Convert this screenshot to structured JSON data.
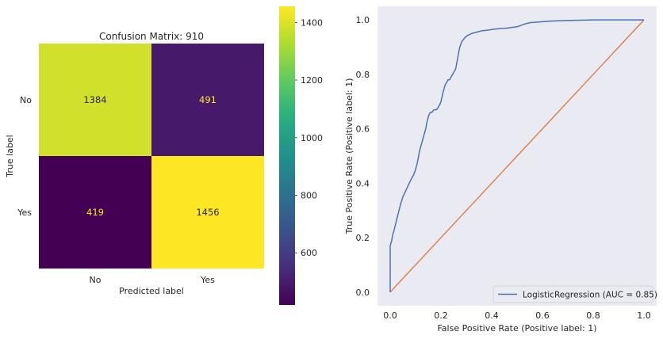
{
  "chart_data": [
    {
      "type": "heatmap",
      "title": "Confusion Matrix: 910",
      "xlabel": "Predicted label",
      "ylabel": "True label",
      "x_categories": [
        "No",
        "Yes"
      ],
      "y_categories": [
        "No",
        "Yes"
      ],
      "values": [
        [
          1384,
          491
        ],
        [
          419,
          1456
        ]
      ],
      "colorbar": {
        "range": [
          419,
          1456
        ],
        "ticks": [
          600,
          800,
          1000,
          1200,
          1400
        ],
        "colormap": "viridis"
      },
      "grid": false
    },
    {
      "type": "line",
      "xlabel": "False Positive Rate (Positive label: 1)",
      "ylabel": "True Positive Rate (Positive label: 1)",
      "xlim": [
        -0.05,
        1.05
      ],
      "ylim": [
        -0.05,
        1.05
      ],
      "xticks": [
        "0.0",
        "0.2",
        "0.4",
        "0.6",
        "0.8",
        "1.0"
      ],
      "yticks": [
        "0.0",
        "0.2",
        "0.4",
        "0.6",
        "0.8",
        "1.0"
      ],
      "background": "#eaeaf2",
      "grid": false,
      "legend_position": "bottom-right",
      "series": [
        {
          "name": "LogisticRegression (AUC = 0.85)",
          "color": "#4c72b0",
          "x": [
            0,
            0,
            0.003,
            0.006,
            0.01,
            0.016,
            0.024,
            0.032,
            0.04,
            0.05,
            0.06,
            0.07,
            0.08,
            0.092,
            0.1,
            0.108,
            0.116,
            0.122,
            0.128,
            0.134,
            0.14,
            0.146,
            0.152,
            0.158,
            0.164,
            0.172,
            0.182,
            0.19,
            0.196,
            0.2,
            0.205,
            0.21,
            0.216,
            0.222,
            0.228,
            0.234,
            0.24,
            0.246,
            0.252,
            0.258,
            0.262,
            0.266,
            0.27,
            0.274,
            0.278,
            0.282,
            0.286,
            0.29,
            0.295,
            0.3,
            0.31,
            0.32,
            0.34,
            0.36,
            0.38,
            0.4,
            0.43,
            0.46,
            0.5,
            0.53,
            0.55,
            0.58,
            0.62,
            0.66,
            0.7,
            0.75,
            0.8,
            0.85,
            0.9,
            0.95,
            1.0
          ],
          "y": [
            0,
            0.17,
            0.18,
            0.19,
            0.21,
            0.23,
            0.26,
            0.29,
            0.32,
            0.35,
            0.37,
            0.39,
            0.41,
            0.43,
            0.45,
            0.48,
            0.52,
            0.54,
            0.56,
            0.58,
            0.6,
            0.63,
            0.65,
            0.66,
            0.66,
            0.67,
            0.67,
            0.68,
            0.69,
            0.7,
            0.72,
            0.74,
            0.76,
            0.77,
            0.78,
            0.78,
            0.79,
            0.8,
            0.81,
            0.82,
            0.84,
            0.86,
            0.88,
            0.9,
            0.91,
            0.92,
            0.925,
            0.93,
            0.935,
            0.94,
            0.945,
            0.95,
            0.955,
            0.96,
            0.962,
            0.965,
            0.968,
            0.97,
            0.975,
            0.985,
            0.99,
            0.992,
            0.995,
            0.997,
            0.998,
            0.999,
            1.0,
            1.0,
            1.0,
            1.0,
            1.0
          ]
        },
        {
          "name": "",
          "color": "#dd8452",
          "x": [
            0,
            1
          ],
          "y": [
            0,
            1
          ]
        }
      ]
    }
  ]
}
